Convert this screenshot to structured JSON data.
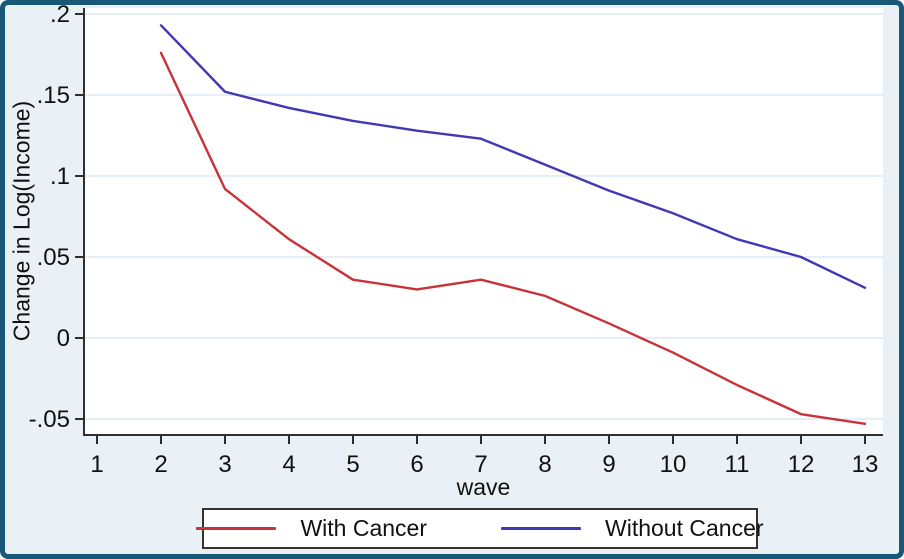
{
  "chart_data": {
    "type": "line",
    "title": "",
    "xlabel": "wave",
    "ylabel": "Change in Log(Income)",
    "x": [
      2,
      3,
      4,
      5,
      6,
      7,
      8,
      9,
      10,
      11,
      12,
      13
    ],
    "series": [
      {
        "name": "With Cancer",
        "color": "#c8333a",
        "values": [
          0.176,
          0.092,
          0.061,
          0.036,
          0.03,
          0.036,
          0.026,
          0.009,
          -0.009,
          -0.029,
          -0.047,
          -0.053
        ]
      },
      {
        "name": "Without Cancer",
        "color": "#4238b4",
        "values": [
          0.193,
          0.152,
          0.142,
          0.134,
          0.128,
          0.123,
          0.107,
          0.091,
          0.077,
          0.061,
          0.05,
          0.031
        ]
      }
    ],
    "x_ticks": [
      1,
      2,
      3,
      4,
      5,
      6,
      7,
      8,
      9,
      10,
      11,
      12,
      13
    ],
    "y_ticks": [
      {
        "value": -0.05,
        "label": "-.05"
      },
      {
        "value": 0,
        "label": "0"
      },
      {
        "value": 0.05,
        "label": ".05"
      },
      {
        "value": 0.1,
        "label": ".1"
      },
      {
        "value": 0.15,
        "label": ".15"
      },
      {
        "value": 0.2,
        "label": ".2"
      }
    ],
    "xlim": [
      0.8,
      13.28
    ],
    "ylim": [
      -0.062,
      0.204
    ],
    "grid": "horizontal",
    "legend_position": "bottom"
  },
  "colors": {
    "frame_border": "#175877",
    "canvas_background": "#e9f1f6",
    "plot_background": "#ffffff",
    "gridline": "#dfe9f2",
    "axis": "#2f2f2f",
    "text": "#111111",
    "legend_border": "#333333",
    "legend_background": "#ffffff"
  }
}
